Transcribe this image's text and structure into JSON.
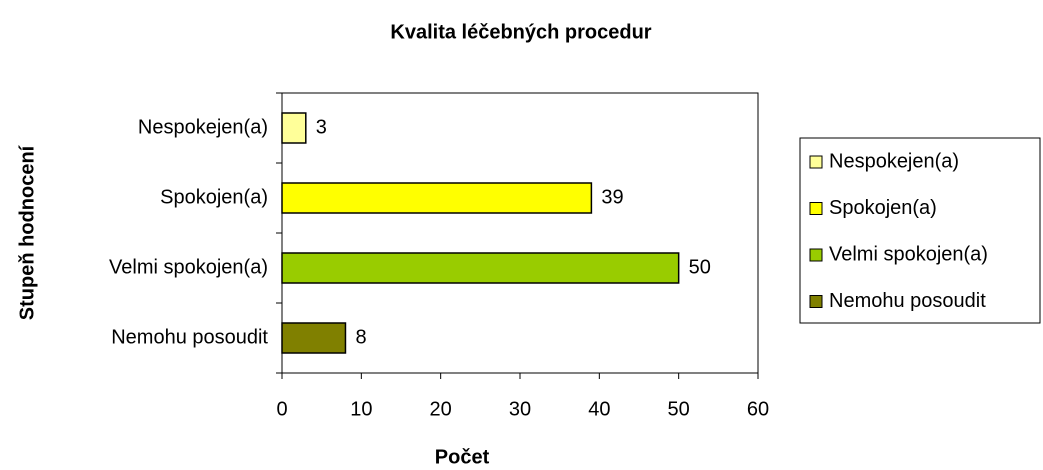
{
  "chart_data": {
    "type": "bar",
    "orientation": "horizontal",
    "title": "Kvalita léčebných procedur",
    "x_label": "Počet",
    "y_label": "Stupeň hodnocení",
    "categories": [
      "Nespokejen(a)",
      "Spokojen(a)",
      "Velmi spokojen(a)",
      "Nemohu posoudit"
    ],
    "values": [
      3,
      39,
      50,
      8
    ],
    "colors": [
      "#ffff99",
      "#ffff00",
      "#99cc00",
      "#808000"
    ],
    "xlim": [
      0,
      60
    ],
    "xticks": [
      0,
      10,
      20,
      30,
      40,
      50,
      60
    ],
    "legend": "right"
  }
}
